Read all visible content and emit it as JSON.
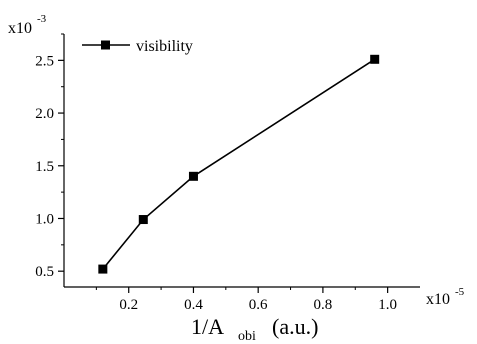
{
  "chart_data": {
    "type": "line",
    "xlabel_main": "1/A",
    "xlabel_sub": "obi",
    "xlabel_unit": "(a.u.)",
    "x_multiplier_base": "x10",
    "x_multiplier_exp": "-5",
    "y_multiplier_base": "x10",
    "y_multiplier_exp": "-3",
    "xlim": [
      0.0,
      1.1
    ],
    "ylim": [
      0.35,
      2.75
    ],
    "x_ticks": [
      0.2,
      0.4,
      0.6,
      0.8,
      1.0
    ],
    "x_tick_labels": [
      "0.2",
      "0.4",
      "0.6",
      "0.8",
      "1.0"
    ],
    "y_ticks": [
      0.5,
      1.0,
      1.5,
      2.0,
      2.5
    ],
    "y_tick_labels": [
      "0.5",
      "1.0",
      "1.5",
      "2.0",
      "2.5"
    ],
    "grid": false,
    "legend_position": "top-left",
    "series": [
      {
        "name": "visibility",
        "marker": "square",
        "color": "#000000",
        "x": [
          0.12,
          0.245,
          0.4,
          0.96
        ],
        "y": [
          0.52,
          0.99,
          1.4,
          2.51
        ]
      }
    ]
  }
}
